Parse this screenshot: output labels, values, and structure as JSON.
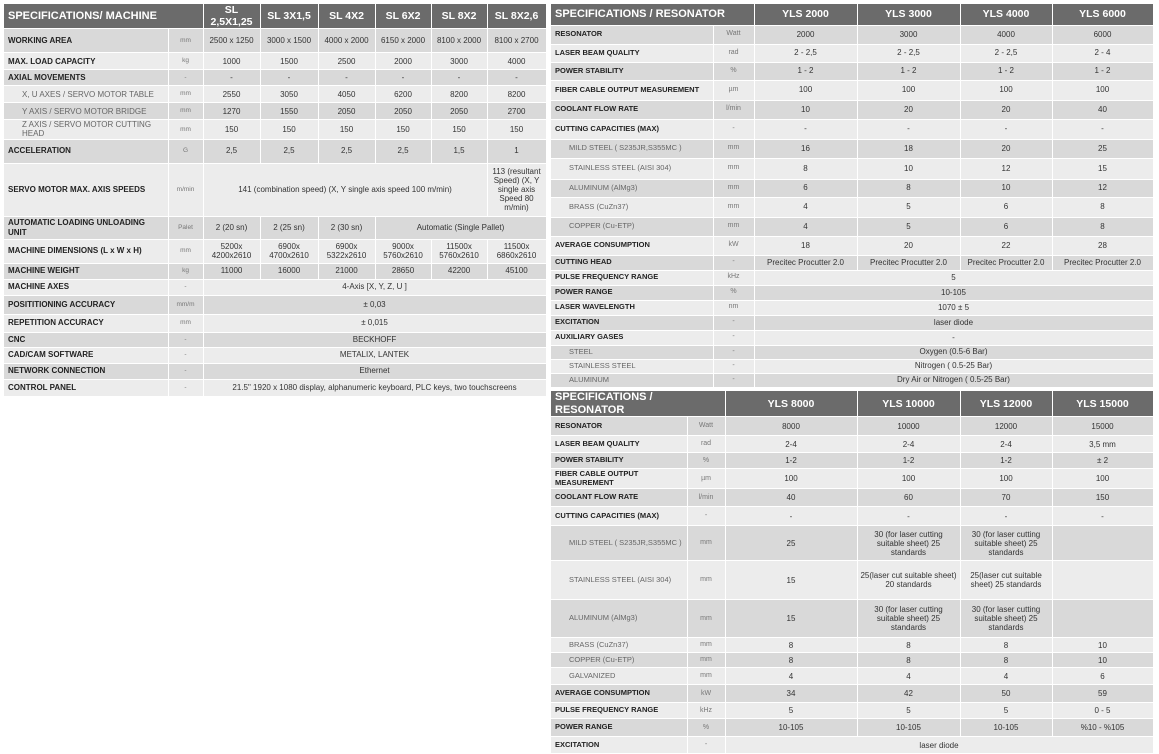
{
  "tables": [
    {
      "id": "machine",
      "title": "SPECIFICATIONS/ MACHINE",
      "columns": [
        "SL 2,5X1,25",
        "SL 3X1,5",
        "SL 4X2",
        "SL 6X2",
        "SL 8X2",
        "SL 8X2,6"
      ],
      "rows": [
        {
          "label": "WORKING AREA",
          "unit": "mm",
          "cells": [
            "2500 x 1250",
            "3000 x 1500",
            "4000 x 2000",
            "6150 x 2000",
            "8100 x 2000",
            "8100 x 2700"
          ]
        },
        {
          "label": "MAX. LOAD CAPACITY",
          "unit": "kg",
          "cells": [
            "1000",
            "1500",
            "2500",
            "2000",
            "3000",
            "4000"
          ]
        },
        {
          "label": "AXIAL MOVEMENTS",
          "unit": "-",
          "cells": [
            "-",
            "-",
            "-",
            "-",
            "-",
            "-"
          ]
        },
        {
          "label": "X, U AXES / SERVO MOTOR TABLE",
          "unit": "mm",
          "sub": true,
          "cells": [
            "2550",
            "3050",
            "4050",
            "6200",
            "8200",
            "8200"
          ]
        },
        {
          "label": "Y AXIS / SERVO MOTOR BRIDGE",
          "unit": "mm",
          "sub": true,
          "cells": [
            "1270",
            "1550",
            "2050",
            "2050",
            "2050",
            "2700"
          ]
        },
        {
          "label": "Z AXIS / SERVO MOTOR CUTTING HEAD",
          "unit": "mm",
          "sub": true,
          "cells": [
            "150",
            "150",
            "150",
            "150",
            "150",
            "150"
          ]
        },
        {
          "label": "ACCELERATION",
          "unit": "G",
          "cells": [
            "2,5",
            "2,5",
            "2,5",
            "2,5",
            "1,5",
            "1"
          ]
        },
        {
          "label": "SERVO MOTOR MAX. AXIS SPEEDS",
          "unit": "m/min",
          "cells": [
            {
              "v": "141 (combination speed) (X, Y single axis speed 100 m/min)",
              "span": 5
            },
            "113 (resultant Speed) (X, Y single axis Speed 80 m/min)"
          ]
        },
        {
          "label": "AUTOMATIC LOADING UNLOADING UNIT",
          "unit": "Palet",
          "cells": [
            "2 (20 sn)",
            "2 (25 sn)",
            "2 (30 sn)",
            {
              "v": "Automatic (Single Pallet)",
              "span": 3
            }
          ]
        },
        {
          "label": "MACHINE DIMENSIONS (L x W x H)",
          "unit": "mm",
          "cells": [
            "5200x 4200x2610",
            "6900x 4700x2610",
            "6900x 5322x2610",
            "9000x 5760x2610",
            "11500x 5760x2610",
            "11500x 6860x2610"
          ]
        },
        {
          "label": "MACHINE WEIGHT",
          "unit": "kg",
          "cells": [
            "11000",
            "16000",
            "21000",
            "28650",
            "42200",
            "45100"
          ]
        },
        {
          "label": "MACHINE AXES",
          "unit": "-",
          "cells": [
            {
              "v": "4-Axis [X, Y, Z, U ]",
              "span": 6
            }
          ]
        },
        {
          "label": "POSITITIONING ACCURACY",
          "unit": "mm/m",
          "cells": [
            {
              "v": "± 0,03",
              "span": 6
            }
          ]
        },
        {
          "label": "REPETITION ACCURACY",
          "unit": "mm",
          "cells": [
            {
              "v": "± 0,015",
              "span": 6
            }
          ]
        },
        {
          "label": "CNC",
          "unit": "-",
          "cells": [
            {
              "v": "BECKHOFF",
              "span": 6
            }
          ]
        },
        {
          "label": "CAD/CAM SOFTWARE",
          "unit": "-",
          "cells": [
            {
              "v": "METALIX, LANTEK",
              "span": 6
            }
          ]
        },
        {
          "label": "NETWORK CONNECTION",
          "unit": "-",
          "cells": [
            {
              "v": "Ethernet",
              "span": 6
            }
          ]
        },
        {
          "label": "CONTROL PANEL",
          "unit": "-",
          "cells": [
            {
              "v": "21.5\" 1920 x 1080 display, alphanumeric keyboard, PLC keys, two touchscreens",
              "span": 6
            }
          ]
        }
      ]
    },
    {
      "id": "resonator-1",
      "title": "SPECIFICATIONS / RESONATOR",
      "columns": [
        "YLS 2000",
        "YLS 3000",
        "YLS 4000",
        "YLS 6000"
      ],
      "rows": [
        {
          "label": "RESONATOR",
          "unit": "Watt",
          "cells": [
            "2000",
            "3000",
            "4000",
            "6000"
          ]
        },
        {
          "label": "LASER BEAM QUALITY",
          "unit": "rad",
          "cells": [
            "2 - 2,5",
            "2 - 2,5",
            "2 - 2,5",
            "2 - 4"
          ]
        },
        {
          "label": "POWER STABILITY",
          "unit": "%",
          "cells": [
            "1 - 2",
            "1 - 2",
            "1 - 2",
            "1 - 2"
          ]
        },
        {
          "label": "FIBER CABLE OUTPUT MEASUREMENT",
          "unit": "µm",
          "cells": [
            "100",
            "100",
            "100",
            "100"
          ]
        },
        {
          "label": "COOLANT FLOW RATE",
          "unit": "l/min",
          "cells": [
            "10",
            "20",
            "20",
            "40"
          ]
        },
        {
          "label": "CUTTING CAPACITIES (MAX)",
          "unit": "-",
          "cells": [
            "-",
            "-",
            "-",
            "-"
          ]
        },
        {
          "label": "MILD STEEL ( S235JR,S355MC )",
          "unit": "mm",
          "sub": true,
          "cells": [
            "16",
            "18",
            "20",
            "25"
          ]
        },
        {
          "label": "STAINLESS STEEL (AISI 304)",
          "unit": "mm",
          "sub": true,
          "cells": [
            "8",
            "10",
            "12",
            "15"
          ]
        },
        {
          "label": "ALUMINUM (AlMg3)",
          "unit": "mm",
          "sub": true,
          "cells": [
            "6",
            "8",
            "10",
            "12"
          ]
        },
        {
          "label": "BRASS (CuZn37)",
          "unit": "mm",
          "sub": true,
          "cells": [
            "4",
            "5",
            "6",
            "8"
          ]
        },
        {
          "label": "COPPER (Cu-ETP)",
          "unit": "mm",
          "sub": true,
          "cells": [
            "4",
            "5",
            "6",
            "8"
          ]
        },
        {
          "label": "AVERAGE CONSUMPTION",
          "unit": "kW",
          "cells": [
            "18",
            "20",
            "22",
            "28"
          ]
        },
        {
          "label": "CUTTING HEAD",
          "unit": "-",
          "cells": [
            "Precitec Procutter 2.0",
            "Precitec Procutter 2.0",
            "Precitec Procutter 2.0",
            "Precitec Procutter 2.0"
          ]
        },
        {
          "label": "PULSE FREQUENCY RANGE",
          "unit": "kHz",
          "cells": [
            {
              "v": "5",
              "span": 4
            }
          ]
        },
        {
          "label": "POWER RANGE",
          "unit": "%",
          "cells": [
            {
              "v": "10-105",
              "span": 4
            }
          ]
        },
        {
          "label": "LASER WAVELENGTH",
          "unit": "nm",
          "cells": [
            {
              "v": "1070 ± 5",
              "span": 4
            }
          ]
        },
        {
          "label": "EXCITATION",
          "unit": "-",
          "cells": [
            {
              "v": "laser diode",
              "span": 4
            }
          ]
        },
        {
          "label": "AUXILIARY GASES",
          "unit": "-",
          "cells": [
            {
              "v": "-",
              "span": 4
            }
          ]
        },
        {
          "label": "STEEL",
          "unit": "-",
          "sub": true,
          "cells": [
            {
              "v": "Oxygen (0.5-6 Bar)",
              "span": 4
            }
          ]
        },
        {
          "label": "STAINLESS STEEL",
          "unit": "-",
          "sub": true,
          "cells": [
            {
              "v": "Nitrogen ( 0.5-25 Bar)",
              "span": 4
            }
          ]
        },
        {
          "label": "ALUMINUM",
          "unit": "-",
          "sub": true,
          "cells": [
            {
              "v": "Dry Air or Nitrogen ( 0.5-25 Bar)",
              "span": 4
            }
          ]
        }
      ]
    },
    {
      "id": "resonator-2",
      "title": "SPECIFICATIONS / RESONATOR",
      "columns": [
        "YLS 8000",
        "YLS 10000",
        "YLS 12000",
        "YLS 15000"
      ],
      "rows": [
        {
          "label": "RESONATOR",
          "unit": "Watt",
          "cells": [
            "8000",
            "10000",
            "12000",
            "15000"
          ]
        },
        {
          "label": "LASER BEAM QUALITY",
          "unit": "rad",
          "cells": [
            "2-4",
            "2-4",
            "2-4",
            "3,5 mm"
          ]
        },
        {
          "label": "POWER STABILITY",
          "unit": "%",
          "cells": [
            "1-2",
            "1-2",
            "1-2",
            "± 2"
          ]
        },
        {
          "label": "FIBER CABLE OUTPUT MEASUREMENT",
          "unit": "µm",
          "cells": [
            "100",
            "100",
            "100",
            "100"
          ]
        },
        {
          "label": "COOLANT FLOW RATE",
          "unit": "l/min",
          "cells": [
            "40",
            "60",
            "70",
            "150"
          ]
        },
        {
          "label": "CUTTING CAPACITIES (MAX)",
          "unit": "-",
          "cells": [
            "-",
            "-",
            "-",
            "-"
          ]
        },
        {
          "label": "MILD STEEL ( S235JR,S355MC )",
          "unit": "mm",
          "sub": true,
          "cells": [
            "25",
            "30 (for laser cutting suitable sheet) 25 standards",
            "30 (for laser cutting suitable sheet) 25 standards",
            ""
          ]
        },
        {
          "label": "STAINLESS STEEL (AISI 304)",
          "unit": "mm",
          "sub": true,
          "cells": [
            "15",
            "25(laser cut suitable sheet) 20 standards",
            "25(laser cut suitable sheet) 25 standards",
            ""
          ]
        },
        {
          "label": "ALUMINUM (AlMg3)",
          "unit": "mm",
          "sub": true,
          "cells": [
            "15",
            "30 (for laser cutting suitable sheet) 25 standards",
            "30 (for laser cutting suitable sheet) 25 standards",
            ""
          ]
        },
        {
          "label": "BRASS (CuZn37)",
          "unit": "mm",
          "sub": true,
          "cells": [
            "8",
            "8",
            "8",
            "10"
          ]
        },
        {
          "label": "COPPER (Cu-ETP)",
          "unit": "mm",
          "sub": true,
          "cells": [
            "8",
            "8",
            "8",
            "10"
          ]
        },
        {
          "label": "GALVANIZED",
          "unit": "mm",
          "sub": true,
          "cells": [
            "4",
            "4",
            "4",
            "6"
          ]
        },
        {
          "label": "AVERAGE CONSUMPTION",
          "unit": "kW",
          "cells": [
            "34",
            "42",
            "50",
            "59"
          ]
        },
        {
          "label": "PULSE FREQUENCY RANGE",
          "unit": "kHz",
          "cells": [
            "5",
            "5",
            "5",
            "0 - 5"
          ]
        },
        {
          "label": "POWER RANGE",
          "unit": "%",
          "cells": [
            "10-105",
            "10-105",
            "10-105",
            "%10 - %105"
          ]
        },
        {
          "label": "EXCITATION",
          "unit": "-",
          "cells": [
            {
              "v": "laser diode",
              "span": 4
            }
          ]
        }
      ]
    }
  ]
}
